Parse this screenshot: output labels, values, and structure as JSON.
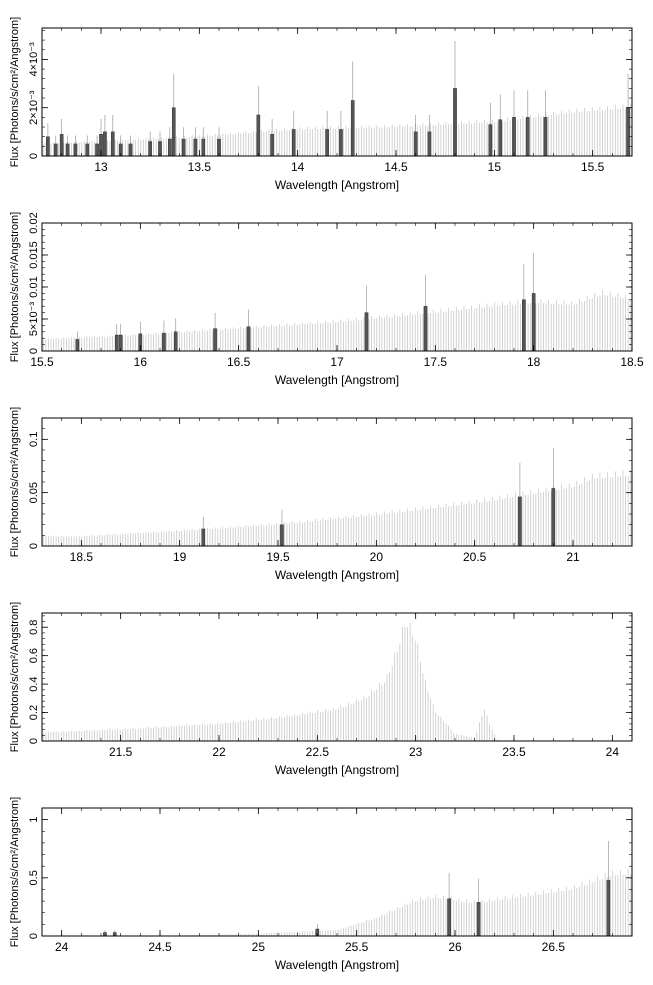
{
  "colors": {
    "background": "#ffffff",
    "axis": "#000000",
    "model_fill": "#d0d0d0",
    "model_line": "#c8c8c8",
    "data_bar": "#555555"
  },
  "chart_data": [
    {
      "type": "bar",
      "xlabel": "Wavelength [Angstrom]",
      "ylabel": "Flux [Photons/s/cm²/Angstrom]",
      "xlim": [
        12.7,
        15.7
      ],
      "ylim": [
        0,
        0.0053
      ],
      "xticks": [
        {
          "value": 13,
          "label": "13"
        },
        {
          "value": 13.5,
          "label": "13.5"
        },
        {
          "value": 14,
          "label": "14"
        },
        {
          "value": 14.5,
          "label": "14.5"
        },
        {
          "value": 15,
          "label": "15"
        },
        {
          "value": 15.5,
          "label": "15.5"
        }
      ],
      "yticks": [
        {
          "value": 0,
          "label": "0"
        },
        {
          "value": 0.002,
          "label": "2×10⁻³"
        },
        {
          "value": 0.004,
          "label": "4×10⁻³"
        }
      ],
      "continuum": [
        [
          12.7,
          0.0005
        ],
        [
          13.0,
          0.0006
        ],
        [
          13.5,
          0.0008
        ],
        [
          14.0,
          0.0011
        ],
        [
          14.5,
          0.0012
        ],
        [
          15.0,
          0.0014
        ],
        [
          15.4,
          0.0018
        ],
        [
          15.7,
          0.002
        ]
      ],
      "lines": [
        [
          12.73,
          0.0008
        ],
        [
          12.77,
          0.0005
        ],
        [
          12.8,
          0.0009
        ],
        [
          12.83,
          0.0005
        ],
        [
          12.87,
          0.0005
        ],
        [
          12.93,
          0.0005
        ],
        [
          12.98,
          0.0005
        ],
        [
          13.0,
          0.0009
        ],
        [
          13.02,
          0.001
        ],
        [
          13.06,
          0.001
        ],
        [
          13.1,
          0.0005
        ],
        [
          13.15,
          0.0005
        ],
        [
          13.25,
          0.0006
        ],
        [
          13.3,
          0.0006
        ],
        [
          13.35,
          0.0007
        ],
        [
          13.37,
          0.002
        ],
        [
          13.42,
          0.0007
        ],
        [
          13.48,
          0.0007
        ],
        [
          13.52,
          0.0007
        ],
        [
          13.6,
          0.0007
        ],
        [
          13.8,
          0.0017
        ],
        [
          13.87,
          0.0009
        ],
        [
          13.98,
          0.0011
        ],
        [
          14.15,
          0.0011
        ],
        [
          14.22,
          0.0011
        ],
        [
          14.28,
          0.0023
        ],
        [
          14.6,
          0.001
        ],
        [
          14.67,
          0.001
        ],
        [
          14.8,
          0.0028
        ],
        [
          14.98,
          0.0013
        ],
        [
          15.03,
          0.0015
        ],
        [
          15.1,
          0.0016
        ],
        [
          15.17,
          0.0016
        ],
        [
          15.26,
          0.0016
        ],
        [
          15.68,
          0.002
        ]
      ]
    },
    {
      "type": "bar",
      "xlabel": "Wavelength [Angstrom]",
      "ylabel": "Flux [Photons/s/cm²/Angstrom]",
      "xlim": [
        15.5,
        18.5
      ],
      "ylim": [
        0,
        0.02
      ],
      "xticks": [
        {
          "value": 15.5,
          "label": "15.5"
        },
        {
          "value": 16,
          "label": "16"
        },
        {
          "value": 16.5,
          "label": "16.5"
        },
        {
          "value": 17,
          "label": "17"
        },
        {
          "value": 17.5,
          "label": "17.5"
        },
        {
          "value": 18,
          "label": "18"
        },
        {
          "value": 18.5,
          "label": "18.5"
        }
      ],
      "yticks": [
        {
          "value": 0,
          "label": "0"
        },
        {
          "value": 0.005,
          "label": "5×10⁻³"
        },
        {
          "value": 0.01,
          "label": "0.01"
        },
        {
          "value": 0.015,
          "label": "0.015"
        },
        {
          "value": 0.02,
          "label": "0.02"
        }
      ],
      "continuum": [
        [
          15.5,
          0.0018
        ],
        [
          16.0,
          0.0025
        ],
        [
          16.5,
          0.0035
        ],
        [
          17.0,
          0.0045
        ],
        [
          17.5,
          0.006
        ],
        [
          17.8,
          0.007
        ],
        [
          18.0,
          0.0075
        ],
        [
          18.2,
          0.0072
        ],
        [
          18.35,
          0.0088
        ],
        [
          18.5,
          0.008
        ]
      ],
      "lines": [
        [
          15.68,
          0.0018
        ],
        [
          15.88,
          0.0025
        ],
        [
          15.9,
          0.0025
        ],
        [
          16.0,
          0.0027
        ],
        [
          16.12,
          0.0028
        ],
        [
          16.18,
          0.003
        ],
        [
          16.38,
          0.0035
        ],
        [
          16.55,
          0.0038
        ],
        [
          17.15,
          0.006
        ],
        [
          17.45,
          0.007
        ],
        [
          17.95,
          0.008
        ],
        [
          18.0,
          0.009
        ]
      ]
    },
    {
      "type": "bar",
      "xlabel": "Wavelength [Angstrom]",
      "ylabel": "Flux [Photons/s/cm²/Angstrom]",
      "xlim": [
        18.3,
        21.3
      ],
      "ylim": [
        0,
        0.12
      ],
      "xticks": [
        {
          "value": 18.5,
          "label": "18.5"
        },
        {
          "value": 19,
          "label": "19"
        },
        {
          "value": 19.5,
          "label": "19.5"
        },
        {
          "value": 20,
          "label": "20"
        },
        {
          "value": 20.5,
          "label": "20.5"
        },
        {
          "value": 21,
          "label": "21"
        }
      ],
      "yticks": [
        {
          "value": 0,
          "label": "0"
        },
        {
          "value": 0.05,
          "label": "0.05"
        },
        {
          "value": 0.1,
          "label": "0.1"
        }
      ],
      "continuum": [
        [
          18.3,
          0.009
        ],
        [
          18.5,
          0.009
        ],
        [
          19.0,
          0.014
        ],
        [
          19.5,
          0.02
        ],
        [
          20.0,
          0.029
        ],
        [
          20.5,
          0.04
        ],
        [
          21.0,
          0.055
        ],
        [
          21.1,
          0.063
        ],
        [
          21.3,
          0.066
        ]
      ],
      "lines": [
        [
          19.12,
          0.016
        ],
        [
          19.52,
          0.02
        ],
        [
          20.73,
          0.046
        ],
        [
          20.9,
          0.054
        ]
      ]
    },
    {
      "type": "area",
      "xlabel": "Wavelength [Angstrom]",
      "ylabel": "Flux [Photons/s/cm²/Angstrom]",
      "xlim": [
        21.1,
        24.1
      ],
      "ylim": [
        0,
        0.9
      ],
      "xticks": [
        {
          "value": 21.5,
          "label": "21.5"
        },
        {
          "value": 22,
          "label": "22"
        },
        {
          "value": 22.5,
          "label": "22.5"
        },
        {
          "value": 23,
          "label": "23"
        },
        {
          "value": 23.5,
          "label": "23.5"
        },
        {
          "value": 24,
          "label": "24"
        }
      ],
      "yticks": [
        {
          "value": 0,
          "label": "0"
        },
        {
          "value": 0.2,
          "label": "0.2"
        },
        {
          "value": 0.4,
          "label": "0.4"
        },
        {
          "value": 0.6,
          "label": "0.6"
        },
        {
          "value": 0.8,
          "label": "0.8"
        }
      ],
      "continuum": [
        [
          21.1,
          0.06
        ],
        [
          21.5,
          0.08
        ],
        [
          22.0,
          0.12
        ],
        [
          22.3,
          0.16
        ],
        [
          22.6,
          0.22
        ],
        [
          22.75,
          0.3
        ],
        [
          22.85,
          0.42
        ],
        [
          22.9,
          0.6
        ],
        [
          22.95,
          0.82
        ],
        [
          23.0,
          0.7
        ],
        [
          23.05,
          0.4
        ],
        [
          23.1,
          0.2
        ],
        [
          23.2,
          0.05
        ],
        [
          23.3,
          0.02
        ],
        [
          23.33,
          0.15
        ],
        [
          23.35,
          0.22
        ],
        [
          23.38,
          0.1
        ],
        [
          23.42,
          0.0
        ],
        [
          24.1,
          0.0
        ]
      ],
      "lines": []
    },
    {
      "type": "bar",
      "xlabel": "Wavelength [Angstrom]",
      "ylabel": "Flux [Photons/s/cm²/Angstrom]",
      "xlim": [
        23.9,
        26.9
      ],
      "ylim": [
        0,
        1.1
      ],
      "xticks": [
        {
          "value": 24,
          "label": "24"
        },
        {
          "value": 24.5,
          "label": "24.5"
        },
        {
          "value": 25,
          "label": "25"
        },
        {
          "value": 25.5,
          "label": "25.5"
        },
        {
          "value": 26,
          "label": "26"
        },
        {
          "value": 26.5,
          "label": "26.5"
        }
      ],
      "yticks": [
        {
          "value": 0,
          "label": "0"
        },
        {
          "value": 0.5,
          "label": "0.5"
        },
        {
          "value": 1,
          "label": "1"
        }
      ],
      "continuum": [
        [
          23.9,
          0.0
        ],
        [
          24.5,
          0.0
        ],
        [
          25.0,
          0.02
        ],
        [
          25.4,
          0.05
        ],
        [
          25.6,
          0.15
        ],
        [
          25.8,
          0.3
        ],
        [
          25.9,
          0.33
        ],
        [
          26.1,
          0.28
        ],
        [
          26.4,
          0.35
        ],
        [
          26.6,
          0.4
        ],
        [
          26.8,
          0.52
        ],
        [
          26.9,
          0.53
        ]
      ],
      "lines": [
        [
          24.22,
          0.03
        ],
        [
          24.27,
          0.03
        ],
        [
          25.3,
          0.06
        ],
        [
          25.97,
          0.32
        ],
        [
          26.12,
          0.29
        ],
        [
          26.78,
          0.48
        ]
      ]
    }
  ]
}
